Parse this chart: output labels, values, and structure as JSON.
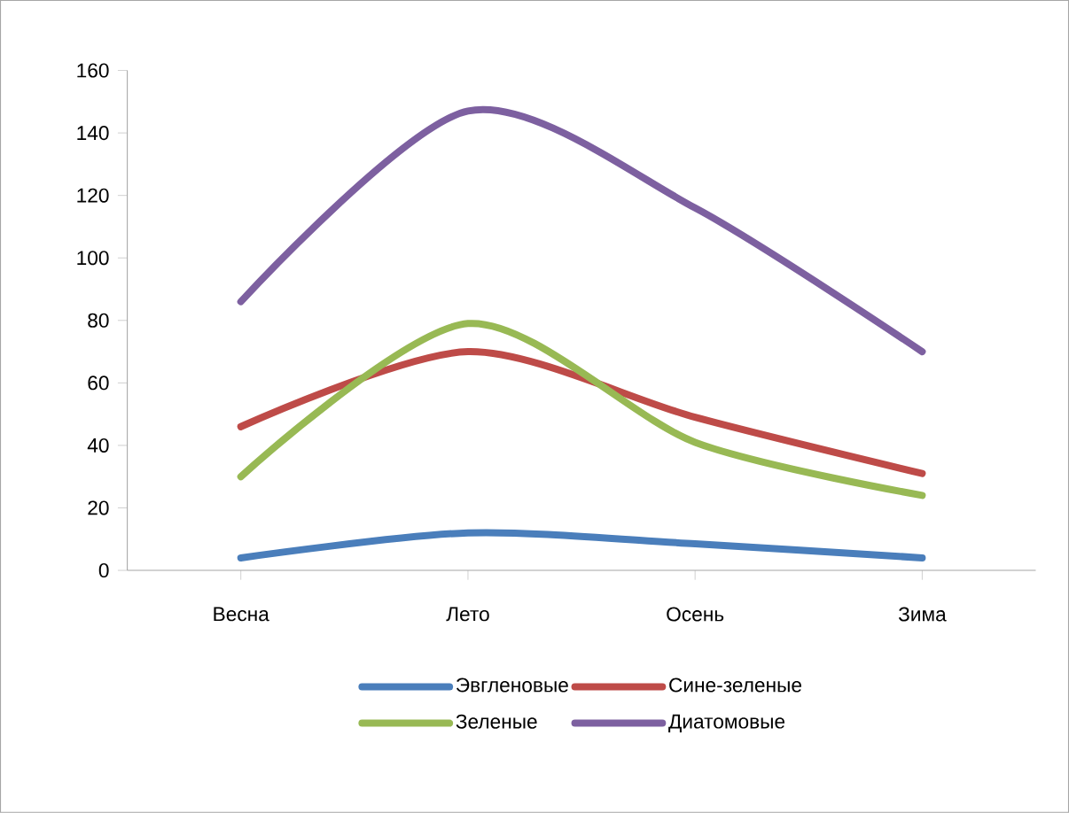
{
  "chart_data": {
    "type": "line",
    "categories": [
      "Весна",
      "Лето",
      "Осень",
      "Зима"
    ],
    "series": [
      {
        "name": "Эвгленовые",
        "color": "#4a7ebb",
        "values": [
          4,
          12,
          8.5,
          4
        ]
      },
      {
        "name": "Сине-зеленые",
        "color": "#be4b48",
        "values": [
          46,
          70,
          49,
          31
        ]
      },
      {
        "name": "Зеленые",
        "color": "#98b954",
        "values": [
          30,
          79,
          41,
          24
        ]
      },
      {
        "name": "Диатомовые",
        "color": "#7d60a0",
        "values": [
          86,
          147,
          116,
          70
        ]
      }
    ],
    "ylim": [
      0,
      160
    ],
    "yticks": [
      0,
      20,
      40,
      60,
      80,
      100,
      120,
      140,
      160
    ],
    "legend": "bottom",
    "grid": false
  }
}
